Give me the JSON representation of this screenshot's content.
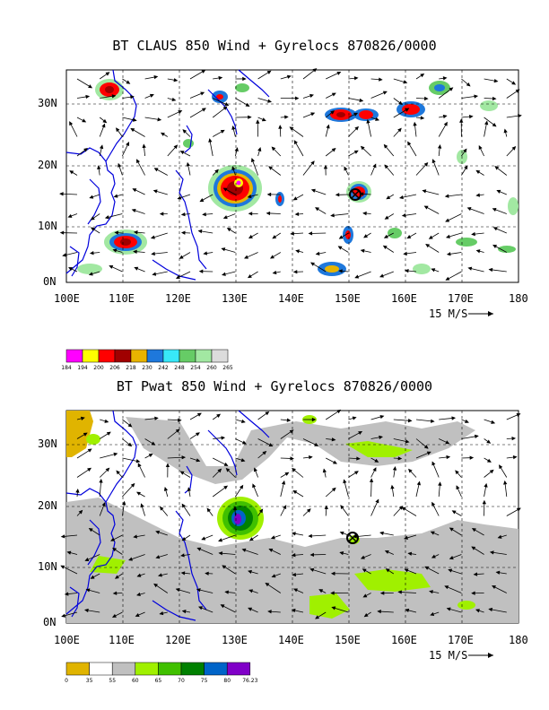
{
  "panel_top": {
    "title": "BT CLAUS 850 Wind + Gyrelocs 870826/0000",
    "lat_labels": [
      "0N",
      "10N",
      "20N",
      "30N"
    ],
    "lon_labels": [
      "100E",
      "110E",
      "120E",
      "130E",
      "140E",
      "150E",
      "160E",
      "170E",
      "180"
    ],
    "scale_label": "15 M/S",
    "colorbar_labels": [
      "184",
      "194",
      "200",
      "206",
      "218",
      "230",
      "242",
      "248",
      "254",
      "260",
      "265"
    ],
    "colorbar_colors": [
      "#ff00ff",
      "#ffff00",
      "#ff0000",
      "#a00000",
      "#e8b400",
      "#1e78dc",
      "#38e8f8",
      "#66cc66",
      "#a2e8a2",
      "#dcdcdc"
    ]
  },
  "panel_bottom": {
    "title": "BT Pwat 850 Wind + Gyrelocs 870826/0000",
    "lat_labels": [
      "0N",
      "10N",
      "20N",
      "30N"
    ],
    "lon_labels": [
      "100E",
      "110E",
      "120E",
      "130E",
      "140E",
      "150E",
      "160E",
      "170E",
      "180"
    ],
    "scale_label": "15 M/S",
    "colorbar_labels": [
      "0",
      "35",
      "55",
      "60",
      "65",
      "70",
      "75",
      "80",
      "76.23"
    ],
    "colorbar_colors": [
      "#e0b400",
      "#ffffff",
      "#c0c0c0",
      "#a0f000",
      "#40c000",
      "#008000",
      "#0064c8",
      "#8000c8"
    ]
  }
}
